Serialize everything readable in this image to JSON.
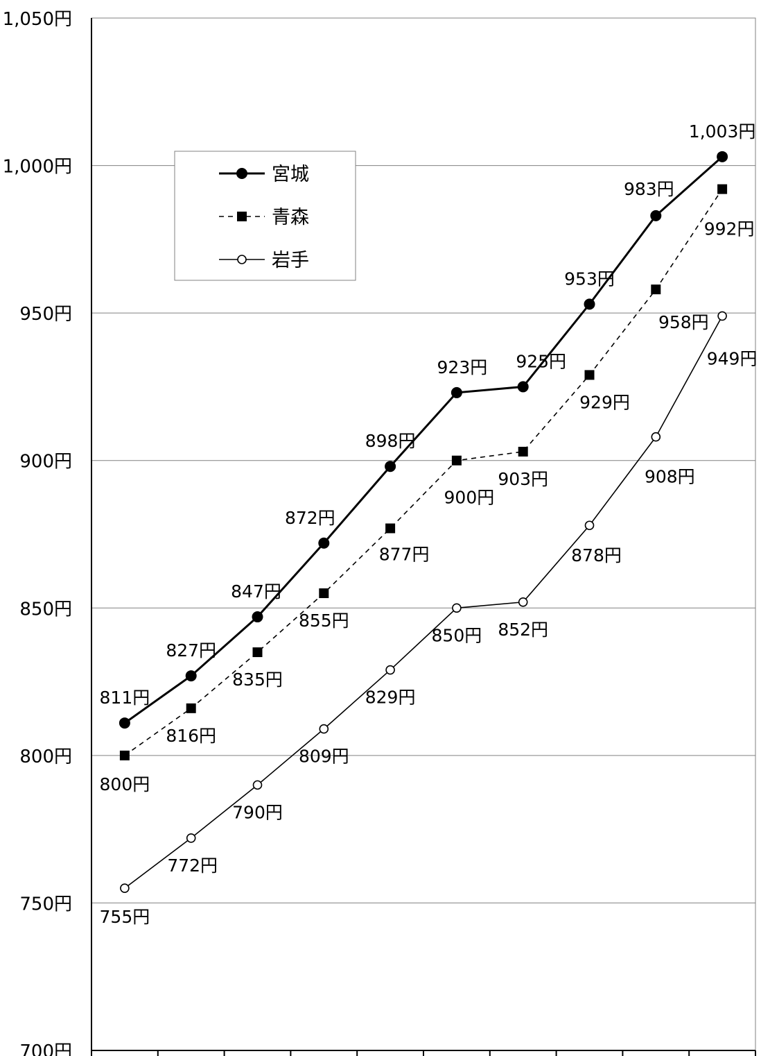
{
  "chart_data": {
    "type": "line",
    "categories": [
      "",
      "",
      "",
      "",
      "",
      "",
      "",
      "",
      "",
      ""
    ],
    "ylim": [
      700,
      1050
    ],
    "ytick_step": 50,
    "unit_suffix": "円",
    "yticks": [
      "700円",
      "750円",
      "800円",
      "850円",
      "900円",
      "950円",
      "1,000円",
      "1,050円"
    ],
    "grid": true,
    "legend_position": "upper-left",
    "series": [
      {
        "name": "宮城",
        "style": "solid-thick",
        "marker": "filled-circle",
        "color": "#000000",
        "values": [
          811,
          827,
          847,
          872,
          898,
          923,
          925,
          953,
          983,
          1003
        ],
        "labels": [
          "811円",
          "827円",
          "847円",
          "872円",
          "898円",
          "923円",
          "925円",
          "953円",
          "983円",
          "1,003円"
        ]
      },
      {
        "name": "青森",
        "style": "dashed",
        "marker": "filled-square",
        "color": "#000000",
        "values": [
          800,
          816,
          835,
          855,
          877,
          900,
          903,
          929,
          958,
          992
        ],
        "labels": [
          "800円",
          "816円",
          "835円",
          "855円",
          "877円",
          "900円",
          "903円",
          "929円",
          "958円",
          "992円"
        ]
      },
      {
        "name": "岩手",
        "style": "solid-thin",
        "marker": "open-circle",
        "color": "#000000",
        "values": [
          755,
          772,
          790,
          809,
          829,
          850,
          852,
          878,
          908,
          949
        ],
        "labels": [
          "755円",
          "772円",
          "790円",
          "809円",
          "829円",
          "850円",
          "852円",
          "878円",
          "908円",
          "949円"
        ]
      }
    ]
  }
}
